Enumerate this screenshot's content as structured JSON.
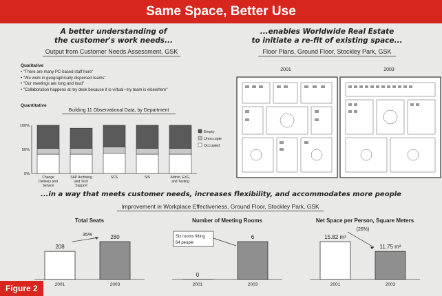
{
  "banner_title": "Same Space, Better Use",
  "figure_tag": "Figure 2",
  "left_head": [
    "A better understanding of",
    "the customer's work needs..."
  ],
  "left_sub": "Output from Customer Needs Assessment, GSK",
  "qualitative_label": "Qualitative",
  "qualitative_items": [
    "\"There are many PC-based staff here\"",
    "\"We work in geographically dispersed teams\"",
    "\"Our meetings are long and loud\"",
    "\"Collaboration happens at my desk because it is virtual--my team is elsewhere\""
  ],
  "quantitative_label": "Quantitative",
  "bar_title": "Building 11 Observational Data, by Department",
  "right_head": [
    "...enables Worldwide Real Estate",
    "to initiate a re-fit of existing space..."
  ],
  "right_sub": "Floor Plans, Ground Floor, Stockley Park, GSK",
  "plan_years": [
    "2001",
    "2003"
  ],
  "middle_head": "...in a way that meets customer needs, increases flexibility, and accommodates more people",
  "middle_sub": "Improvement in Workplace Effectiveness, Ground Floor, Stockley Park, GSK",
  "chart_data": [
    {
      "type": "bar",
      "title": "Building 11 Observational Data, by Department",
      "categories": [
        "Change Delivery and Service",
        "SAP Archiving and Tech Support",
        "SCS",
        "SIS",
        "Admin, EXG, and Testing"
      ],
      "ylim": [
        0,
        100
      ],
      "yticks": [
        "0%",
        "50%",
        "100%"
      ],
      "legend": "right",
      "series": [
        {
          "name": "Occupied",
          "color": "#ffffff",
          "values": [
            40,
            40,
            42,
            40,
            40
          ]
        },
        {
          "name": "Unoccupied",
          "color": "#c8c8c8",
          "values": [
            12,
            12,
            13,
            12,
            12
          ]
        },
        {
          "name": "Empty",
          "color": "#5a5a5a",
          "values": [
            48,
            42,
            45,
            48,
            48
          ]
        }
      ]
    },
    {
      "type": "bar",
      "title": "Total Seats",
      "categories": [
        "2001",
        "2003"
      ],
      "values": [
        208,
        280
      ],
      "value_labels": [
        "208",
        "280"
      ],
      "change_label": "35%"
    },
    {
      "type": "bar",
      "title": "Number of Meeting Rooms",
      "categories": [
        "2001",
        "2003"
      ],
      "values": [
        0,
        6
      ],
      "value_labels": [
        "0",
        "6"
      ],
      "callout": [
        "Six rooms fitting",
        "64 people"
      ]
    },
    {
      "type": "bar",
      "title": "Net Space per Person, Square Meters",
      "categories": [
        "2001",
        "2003"
      ],
      "values": [
        15.82,
        11.75
      ],
      "value_labels": [
        "15.82 m²",
        "11.75 m²"
      ],
      "change_label": "(26%)"
    }
  ]
}
